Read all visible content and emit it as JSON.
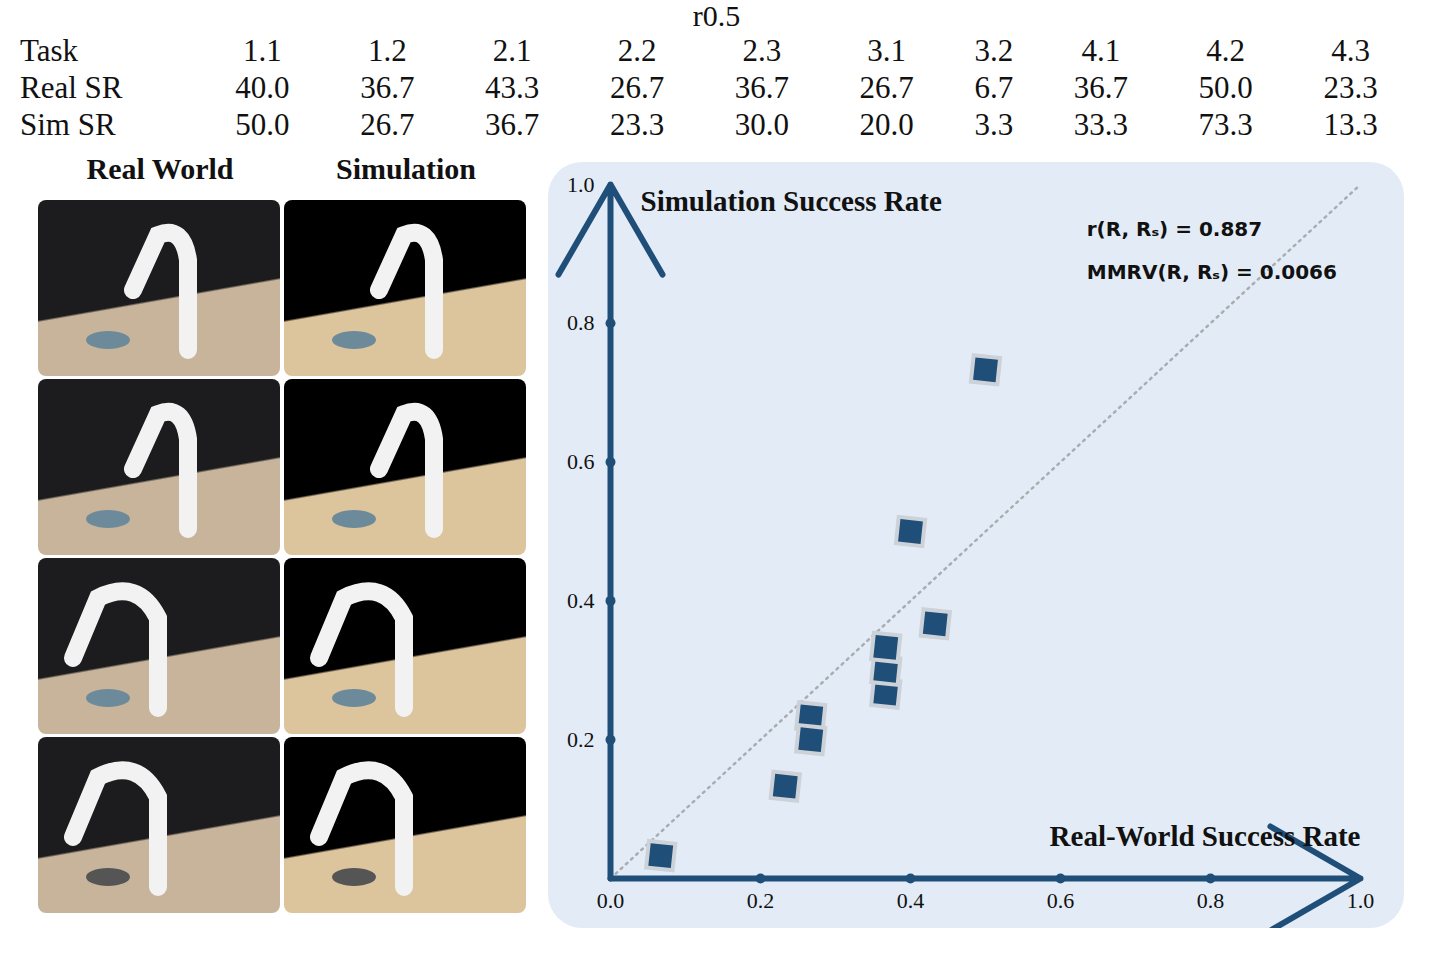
{
  "table": {
    "title": "r0.5",
    "rows": [
      [
        "Task",
        "1.1",
        "1.2",
        "2.1",
        "2.2",
        "2.3",
        "3.1",
        "3.2",
        "4.1",
        "4.2",
        "4.3"
      ],
      [
        "Real SR",
        "40.0",
        "36.7",
        "43.3",
        "26.7",
        "36.7",
        "26.7",
        "6.7",
        "36.7",
        "50.0",
        "23.3"
      ],
      [
        "Sim SR",
        "50.0",
        "26.7",
        "36.7",
        "23.3",
        "30.0",
        "20.0",
        "3.3",
        "33.3",
        "73.3",
        "13.3"
      ]
    ]
  },
  "panels": {
    "headers": [
      "Real World",
      "Simulation"
    ]
  },
  "chart_data": {
    "type": "scatter",
    "x_label": "Real-World Success Rate",
    "y_label": "Simulation Success Rate",
    "annotations": [
      "r(R, Rₛ) = 0.887",
      "MMRV(R, Rₛ) = 0.0066"
    ],
    "x": [
      0.4,
      0.367,
      0.433,
      0.267,
      0.367,
      0.267,
      0.067,
      0.367,
      0.5,
      0.233
    ],
    "y": [
      0.5,
      0.267,
      0.367,
      0.233,
      0.3,
      0.2,
      0.033,
      0.333,
      0.733,
      0.133
    ],
    "color": "#1f4e79",
    "marker": "square",
    "xlim": [
      0,
      1
    ],
    "ylim": [
      0,
      1
    ],
    "xticks": [
      {
        "value": 0,
        "label": "0.0"
      },
      0.2,
      0.4,
      0.6,
      0.8,
      {
        "value": 1,
        "label": "1.0"
      }
    ],
    "yticks": [
      0.2,
      0.4,
      0.6,
      0.8,
      {
        "value": 1,
        "label": "1.0"
      }
    ]
  }
}
